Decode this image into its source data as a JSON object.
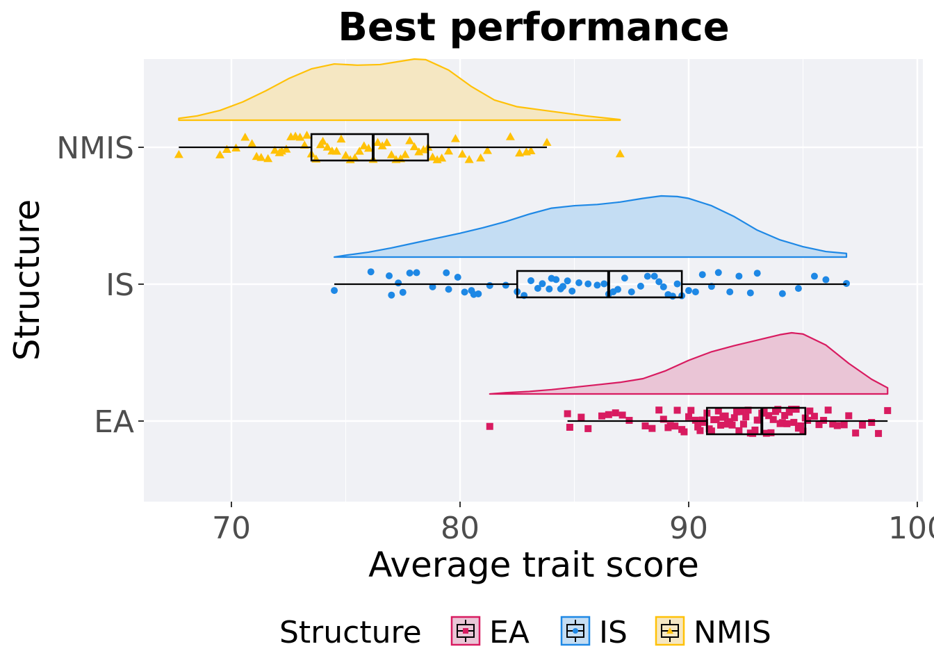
{
  "chart_data": {
    "type": "raincloud",
    "title": "Best performance",
    "xlabel": "Average trait score",
    "ylabel": "Structure",
    "xlim": [
      66,
      100
    ],
    "x_ticks": [
      70,
      80,
      90,
      100
    ],
    "x_tick_labels": [
      "70",
      "80",
      "90",
      "100"
    ],
    "grid": true,
    "legend": {
      "title": "Structure",
      "position": "bottom",
      "entries": [
        "EA",
        "IS",
        "NMIS"
      ]
    },
    "series": [
      {
        "name": "EA",
        "color": "#d81b60",
        "fill": "#eac5d6",
        "marker": "square",
        "box": {
          "min": 84.7,
          "q1": 90.8,
          "median": 93.2,
          "q3": 95.1,
          "max": 98.7
        },
        "density": [
          [
            81.3,
            0.0
          ],
          [
            82.0,
            0.02
          ],
          [
            83.0,
            0.04
          ],
          [
            84.0,
            0.07
          ],
          [
            85.0,
            0.11
          ],
          [
            86.0,
            0.15
          ],
          [
            87.0,
            0.19
          ],
          [
            88.0,
            0.25
          ],
          [
            89.0,
            0.38
          ],
          [
            90.0,
            0.55
          ],
          [
            91.0,
            0.69
          ],
          [
            92.0,
            0.79
          ],
          [
            93.0,
            0.88
          ],
          [
            94.0,
            0.97
          ],
          [
            94.5,
            1.0
          ],
          [
            95.0,
            0.98
          ],
          [
            96.0,
            0.8
          ],
          [
            97.0,
            0.5
          ],
          [
            98.0,
            0.24
          ],
          [
            98.7,
            0.1
          ]
        ],
        "points": [
          81.3,
          84.7,
          84.8,
          85.3,
          85.6,
          86.2,
          86.5,
          86.8,
          87.1,
          87.4,
          88.1,
          88.4,
          88.7,
          88.9,
          89.1,
          89.2,
          89.4,
          89.5,
          89.7,
          89.8,
          90.0,
          90.1,
          90.3,
          90.4,
          90.5,
          90.6,
          90.7,
          90.8,
          90.9,
          91.0,
          91.1,
          91.2,
          91.3,
          91.4,
          91.5,
          91.6,
          91.7,
          91.8,
          91.9,
          92.0,
          92.1,
          92.2,
          92.3,
          92.4,
          92.5,
          92.6,
          92.7,
          92.8,
          92.9,
          93.0,
          93.1,
          93.2,
          93.3,
          93.4,
          93.5,
          93.6,
          93.7,
          93.8,
          93.9,
          94.0,
          94.1,
          94.2,
          94.3,
          94.4,
          94.5,
          94.6,
          94.7,
          94.8,
          94.9,
          95.0,
          95.1,
          95.2,
          95.3,
          95.5,
          95.7,
          95.9,
          96.1,
          96.3,
          96.5,
          96.8,
          97.0,
          97.3,
          97.6,
          98.0,
          98.3,
          98.7
        ]
      },
      {
        "name": "IS",
        "color": "#1e88e5",
        "fill": "#c4ddf3",
        "marker": "circle",
        "box": {
          "min": 74.5,
          "q1": 82.5,
          "median": 86.5,
          "q3": 89.7,
          "max": 96.9
        },
        "density": [
          [
            74.5,
            0.0
          ],
          [
            75.0,
            0.03
          ],
          [
            76.0,
            0.08
          ],
          [
            77.0,
            0.15
          ],
          [
            78.0,
            0.23
          ],
          [
            79.0,
            0.31
          ],
          [
            80.0,
            0.39
          ],
          [
            81.0,
            0.48
          ],
          [
            82.0,
            0.58
          ],
          [
            83.0,
            0.7
          ],
          [
            84.0,
            0.8
          ],
          [
            85.0,
            0.84
          ],
          [
            86.0,
            0.86
          ],
          [
            87.0,
            0.9
          ],
          [
            88.0,
            0.96
          ],
          [
            88.8,
            1.0
          ],
          [
            89.5,
            0.99
          ],
          [
            90.0,
            0.96
          ],
          [
            91.0,
            0.84
          ],
          [
            92.0,
            0.66
          ],
          [
            93.0,
            0.44
          ],
          [
            94.0,
            0.28
          ],
          [
            95.0,
            0.17
          ],
          [
            96.0,
            0.09
          ],
          [
            96.9,
            0.06
          ]
        ],
        "points": [
          74.5,
          76.1,
          76.9,
          77.0,
          77.3,
          77.5,
          77.8,
          78.1,
          78.8,
          79.4,
          79.5,
          79.9,
          80.2,
          80.5,
          80.6,
          80.8,
          81.3,
          82.0,
          82.5,
          82.8,
          83.1,
          83.4,
          83.6,
          83.9,
          84.0,
          84.2,
          84.4,
          84.5,
          84.7,
          84.9,
          85.2,
          85.6,
          86.0,
          86.3,
          86.5,
          86.7,
          86.9,
          87.2,
          87.5,
          87.9,
          88.2,
          88.5,
          88.7,
          88.9,
          89.1,
          89.3,
          89.5,
          89.7,
          90.0,
          90.3,
          90.6,
          91.0,
          91.3,
          91.8,
          92.2,
          92.7,
          93.0,
          94.1,
          94.8,
          95.5,
          96.0,
          96.9
        ]
      },
      {
        "name": "NMIS",
        "color": "#ffc107",
        "fill": "#f5e7c2",
        "marker": "triangle",
        "box": {
          "min": 67.7,
          "q1": 73.5,
          "median": 76.2,
          "q3": 78.6,
          "max": 83.8
        },
        "density": [
          [
            67.7,
            0.03
          ],
          [
            68.5,
            0.07
          ],
          [
            69.5,
            0.16
          ],
          [
            70.5,
            0.3
          ],
          [
            71.5,
            0.48
          ],
          [
            72.5,
            0.68
          ],
          [
            73.5,
            0.84
          ],
          [
            74.5,
            0.92
          ],
          [
            75.5,
            0.9
          ],
          [
            76.5,
            0.91
          ],
          [
            77.5,
            0.97
          ],
          [
            78.0,
            1.0
          ],
          [
            78.5,
            0.99
          ],
          [
            79.5,
            0.82
          ],
          [
            80.5,
            0.55
          ],
          [
            81.5,
            0.33
          ],
          [
            82.5,
            0.22
          ],
          [
            83.5,
            0.17
          ],
          [
            84.5,
            0.12
          ],
          [
            85.5,
            0.07
          ],
          [
            86.5,
            0.03
          ],
          [
            87.0,
            0.01
          ]
        ],
        "points": [
          67.7,
          69.5,
          69.8,
          70.2,
          70.6,
          70.9,
          71.1,
          71.3,
          71.6,
          71.9,
          72.1,
          72.2,
          72.4,
          72.6,
          72.8,
          73.0,
          73.2,
          73.3,
          73.5,
          73.7,
          73.9,
          74.0,
          74.2,
          74.4,
          74.6,
          74.8,
          75.0,
          75.2,
          75.4,
          75.6,
          75.8,
          76.0,
          76.2,
          76.4,
          76.6,
          76.8,
          77.0,
          77.2,
          77.4,
          77.6,
          77.8,
          78.0,
          78.2,
          78.4,
          78.6,
          78.8,
          79.0,
          79.2,
          79.5,
          79.8,
          80.1,
          80.4,
          80.9,
          81.2,
          82.2,
          82.6,
          82.9,
          83.1,
          83.8,
          87.0
        ]
      }
    ]
  }
}
